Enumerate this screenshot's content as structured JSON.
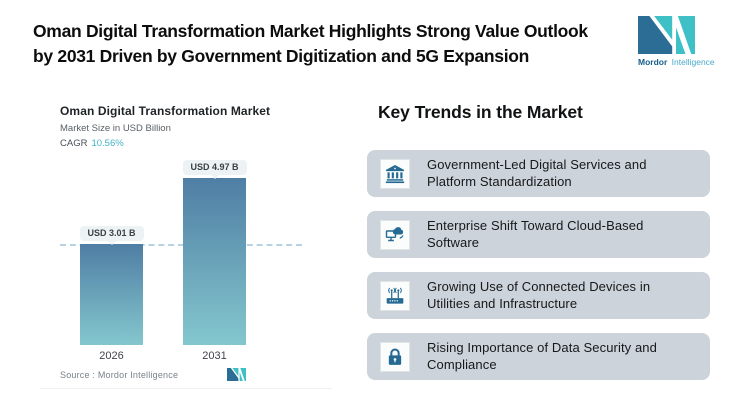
{
  "header": {
    "title_line1": "Oman Digital Transformation Market Highlights Strong Value Outlook",
    "title_line2": "by 2031 Driven by Government Digitization and 5G Expansion"
  },
  "logo": {
    "brand_bold": "Mordor",
    "brand_light": "Intelligence"
  },
  "chart": {
    "title": "Oman Digital Transformation Market",
    "subtitle": "Market Size in USD Billion",
    "cagr_label": "CAGR",
    "cagr_value": "10.56%",
    "source_label": "Source :  Mordor Intelligence"
  },
  "chart_data": {
    "type": "bar",
    "title": "Oman Digital Transformation Market",
    "subtitle": "Market Size in USD Billion",
    "cagr": "10.56%",
    "categories": [
      "2026",
      "2031"
    ],
    "values": [
      3.01,
      4.97
    ],
    "unit": "USD Billion",
    "bar_labels": [
      "USD 3.01 B",
      "USD 4.97 B"
    ],
    "reference_line_value": 3.01,
    "ylim": [
      0,
      4.97
    ],
    "grid": false,
    "legend": "none",
    "bar_gradient_top": "#4f7ea4",
    "bar_gradient_bottom": "#84c7ce",
    "source": "Source :  Mordor Intelligence"
  },
  "trends": {
    "heading": "Key Trends in the Market",
    "items": [
      {
        "icon": "bank-icon",
        "text": "Government-Led Digital Services and Platform Standardization"
      },
      {
        "icon": "cloud-sync-icon",
        "text": "Enterprise Shift Toward Cloud-Based Software"
      },
      {
        "icon": "router-icon",
        "text": "Growing Use of Connected Devices in Utilities and Infrastructure"
      },
      {
        "icon": "lock-icon",
        "text": "Rising Importance of Data Security and Compliance"
      }
    ]
  },
  "colors": {
    "accent_teal": "#45b3c6",
    "brand_dark_blue": "#2b6d94",
    "brand_teal": "#3fc0c6",
    "icon_blue": "#256a93",
    "card_bg": "#cdd3da",
    "dashed_line": "#abccdc"
  }
}
